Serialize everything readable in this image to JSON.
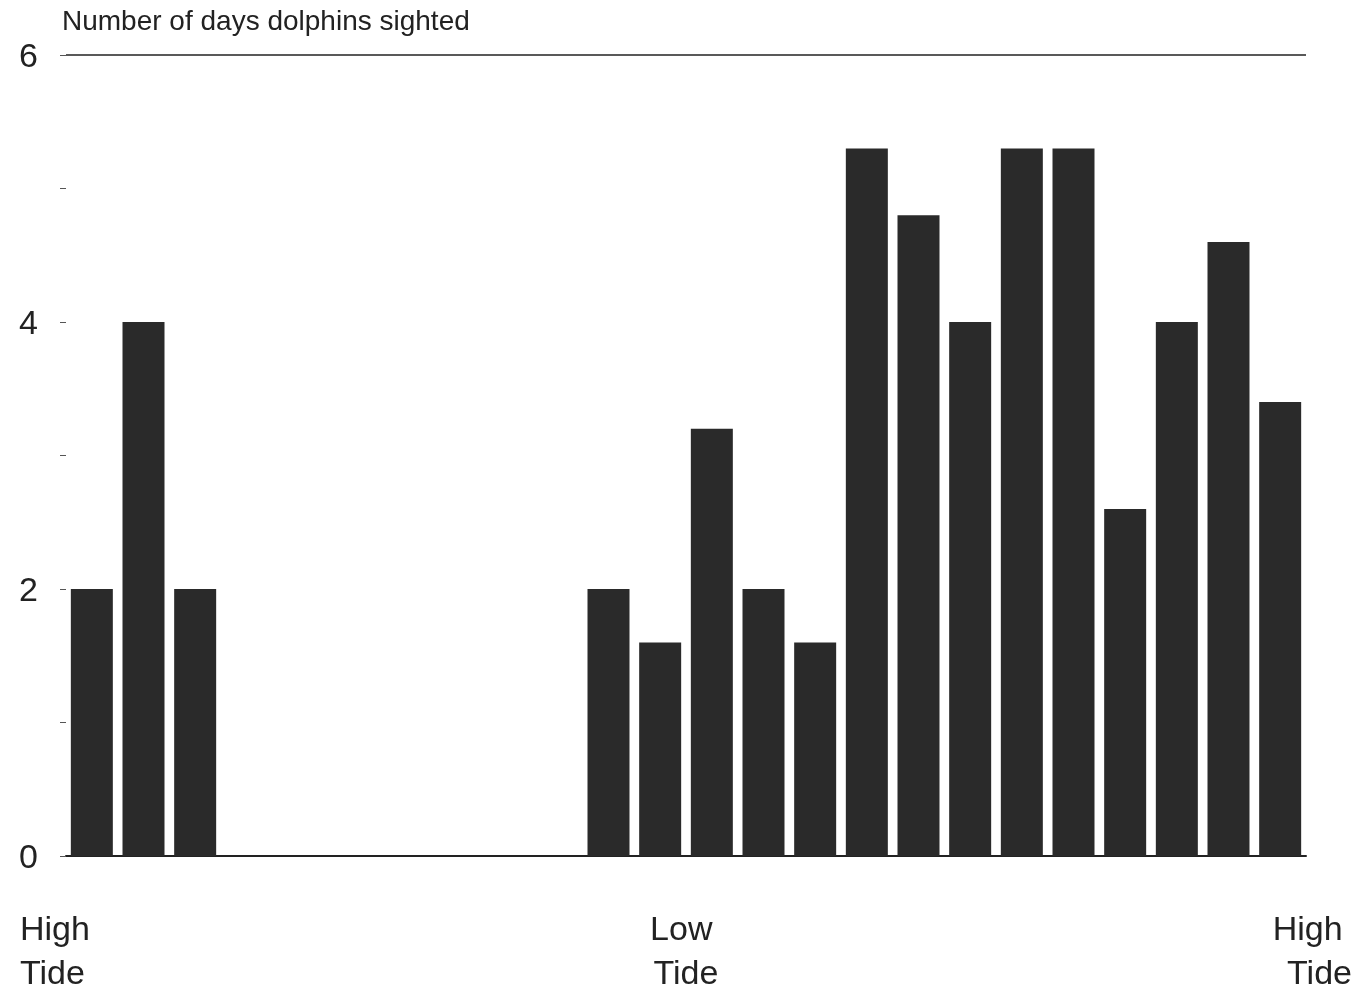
{
  "chart_data": {
    "type": "bar",
    "ylabel": "Number of days dolphins sighted",
    "categories": [
      null,
      null,
      null,
      null,
      null,
      null,
      null,
      null,
      null,
      null,
      null,
      null,
      null,
      null,
      null,
      null,
      null,
      null,
      null,
      null,
      null,
      null,
      null,
      null
    ],
    "values": [
      2,
      4,
      2,
      0,
      0,
      0,
      0,
      0,
      0,
      0,
      2,
      1.6,
      3.2,
      2,
      1.6,
      5.3,
      4.8,
      4,
      5.3,
      5.3,
      2.6,
      4,
      4.6,
      3.4
    ],
    "color": "#2a2a2a",
    "annotations": [
      "High Tide",
      "Low Tide",
      "High Tide"
    ],
    "ylim": [
      0,
      6
    ],
    "yticks": [
      0,
      {
        "value": 1,
        "label": null
      },
      2,
      {
        "value": 3,
        "label": null
      },
      4,
      {
        "value": 5,
        "label": null
      },
      6
    ],
    "ref_lines": [
      {
        "axis": "y",
        "value": 6
      }
    ]
  }
}
